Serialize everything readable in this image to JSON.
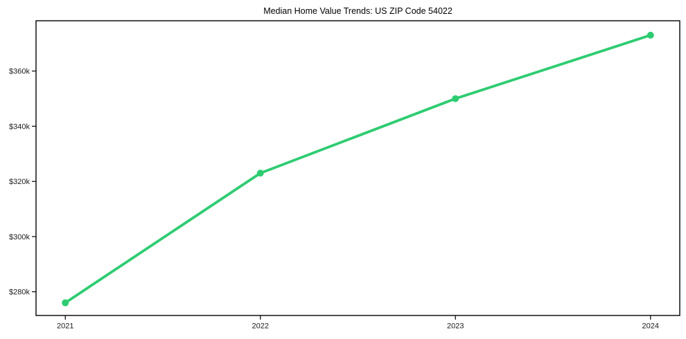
{
  "chart": {
    "title": "Median Home Value Trends: US ZIP Code 54022"
  },
  "chart_data": {
    "type": "line",
    "title": "Median Home Value Trends: US ZIP Code 54022",
    "xlabel": "",
    "ylabel": "",
    "x": [
      2021,
      2022,
      2023,
      2024
    ],
    "x_tick_labels": [
      "2021",
      "2022",
      "2023",
      "2024"
    ],
    "series": [
      {
        "name": "Median Home Value",
        "values": [
          276000,
          323000,
          350000,
          373000
        ]
      }
    ],
    "y_tick_values": [
      280000,
      300000,
      320000,
      340000,
      360000
    ],
    "y_tick_labels": [
      "$280k",
      "$300k",
      "$320k",
      "$340k",
      "$360k"
    ],
    "xlim": [
      2020.85,
      2024.15
    ],
    "ylim": [
      271400,
      378230
    ],
    "grid": false,
    "legend": "none",
    "marker": "circle",
    "line_color": "#2ecc71",
    "background_color": "#ffffff",
    "axis_color": "#000000",
    "text_color": "#1a1a1a"
  }
}
